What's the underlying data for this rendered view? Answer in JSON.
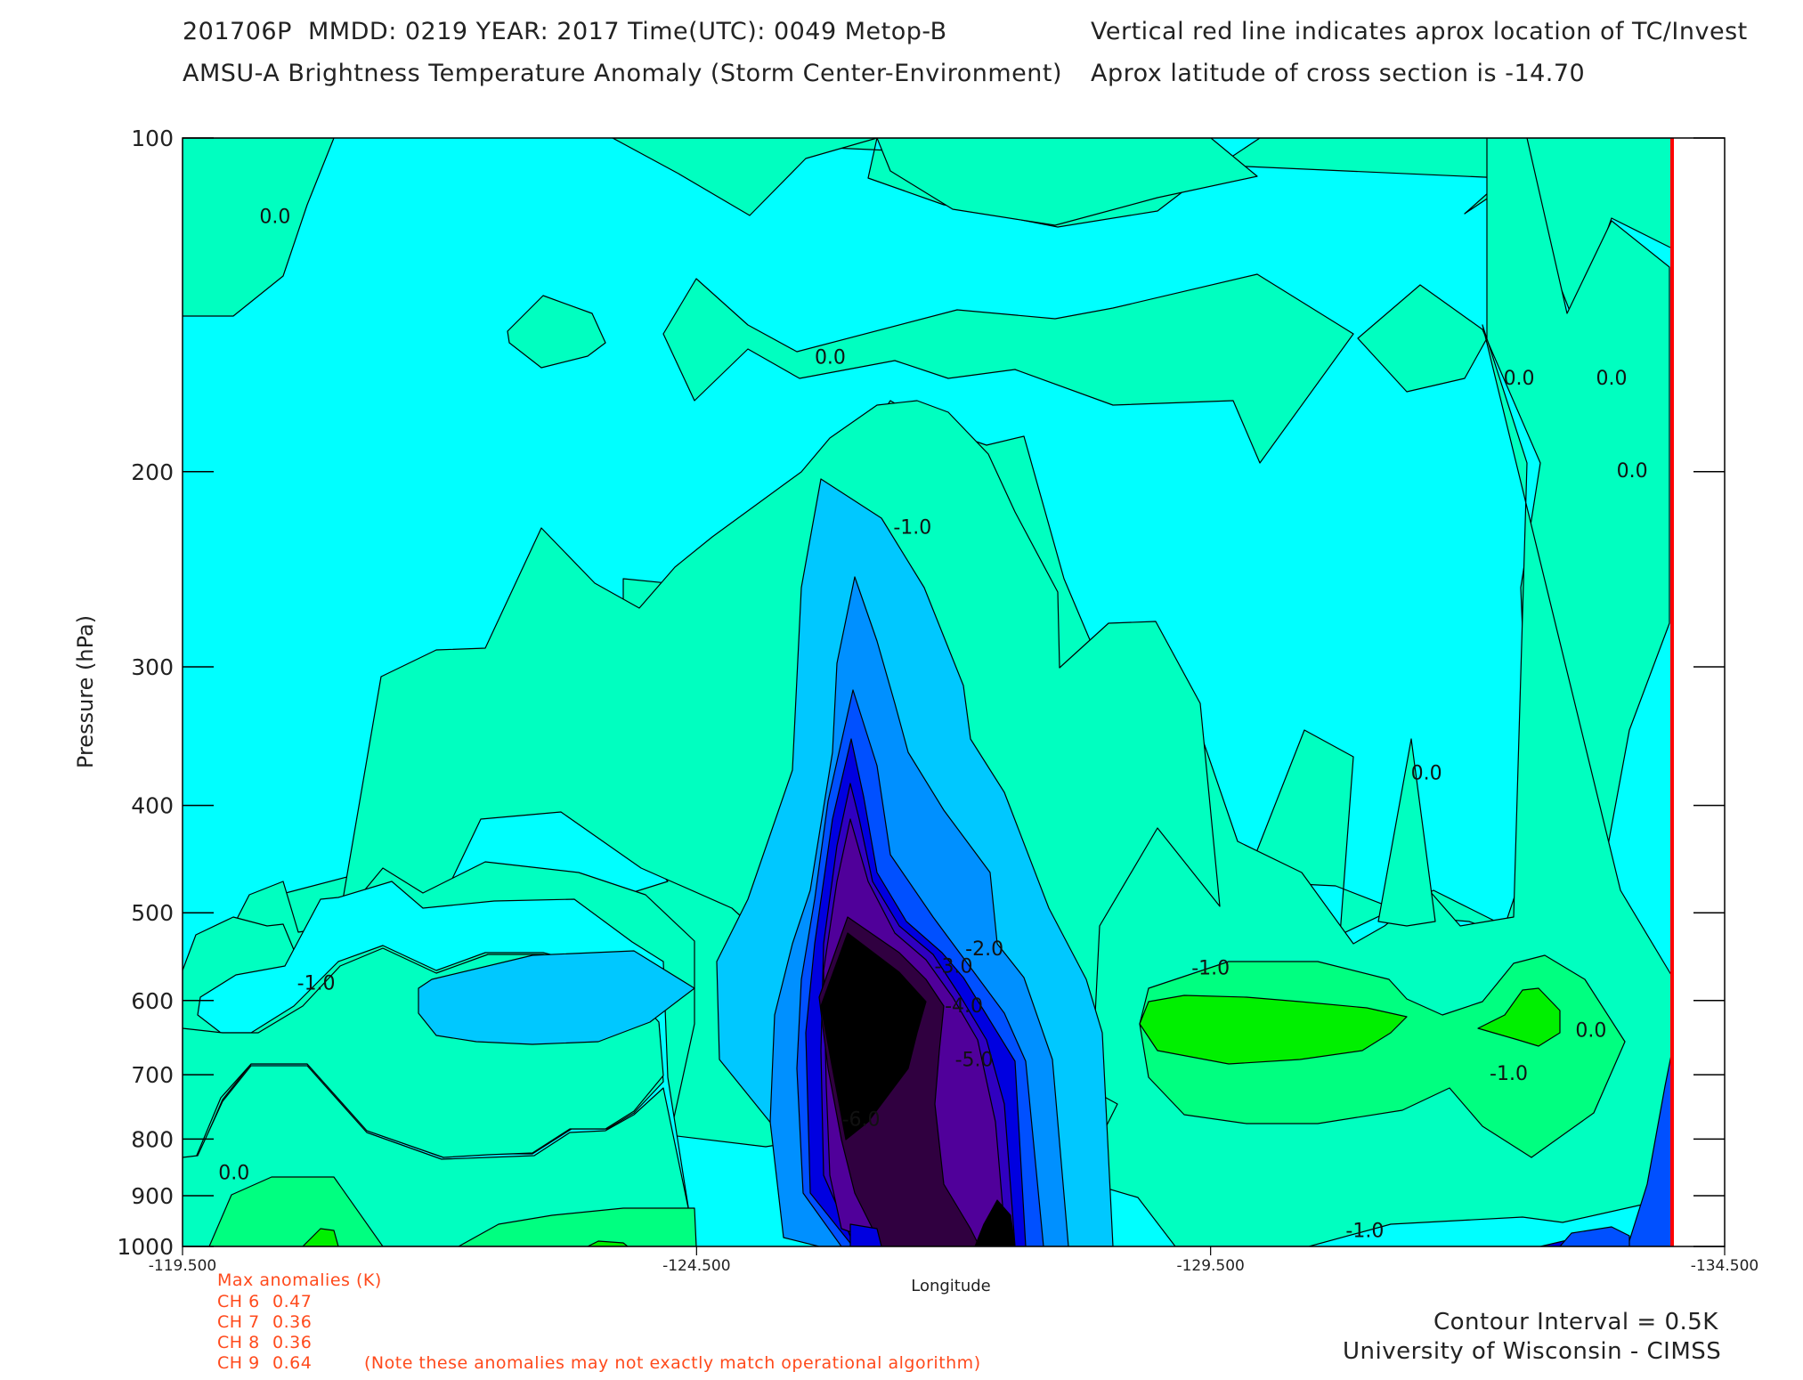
{
  "header": {
    "line1_left": "201706P  MMDD: 0219 YEAR: 2017 Time(UTC): 0049 Metop-B",
    "line2_left": "AMSU-A Brightness Temperature Anomaly (Storm Center-Environment)",
    "line1_right": "Vertical red line indicates aprox location of TC/Invest",
    "line2_right": "Aprox latitude of cross section is -14.70"
  },
  "anomalies": {
    "title": "Max anomalies (K)",
    "rows": [
      {
        "label": "CH 6",
        "value": "0.47"
      },
      {
        "label": "CH 7",
        "value": "0.36"
      },
      {
        "label": "CH 8",
        "value": "0.36"
      },
      {
        "label": "CH 9",
        "value": "0.64"
      }
    ],
    "note": "(Note these anomalies may not exactly match operational algorithm)"
  },
  "footer": {
    "interval": "Contour Interval = 0.5K",
    "institution": "University of Wisconsin - CIMSS"
  },
  "colors": {
    "background_field": "#00ffff",
    "red_line": "#ff0000",
    "anomaly_text": "#ff4a1c",
    "warm_1": "#00ffc0",
    "warm_2": "#00ff80",
    "warm_3": "#00f000",
    "cool_1": "#00c8ff",
    "cool_2": "#0090ff",
    "cool_3": "#0050ff",
    "cool_4": "#0000e0",
    "cool_5": "#3000c0",
    "cool_6": "#50009a",
    "cool_7": "#300040",
    "cool_8": "#000000"
  },
  "chart_data": {
    "type": "contour",
    "title": "AMSU-A Brightness Temperature Anomaly (Storm Center-Environment)",
    "xlabel": "Longitude",
    "ylabel": "Pressure (hPa)",
    "xlim": [
      -119.5,
      -134.5
    ],
    "ylim": [
      1000,
      100
    ],
    "y_scale": "log",
    "x_ticks": [
      "-119.500",
      "-124.500",
      "-129.500",
      "-134.500"
    ],
    "y_ticks": [
      "100",
      "200",
      "300",
      "400",
      "500",
      "600",
      "700",
      "800",
      "900",
      "1000"
    ],
    "contour_interval": 0.5,
    "storm_longitude": -133.65,
    "contour_labels": [
      {
        "text": "0.0",
        "lon": -120.4,
        "p": 118
      },
      {
        "text": "0.0",
        "lon": -125.8,
        "p": 158
      },
      {
        "text": "0.0",
        "lon": -132.5,
        "p": 165
      },
      {
        "text": "0.0",
        "lon": -133.4,
        "p": 165
      },
      {
        "text": "0.0",
        "lon": -133.6,
        "p": 200
      },
      {
        "text": "0.0",
        "lon": -131.6,
        "p": 375
      },
      {
        "text": "0.0",
        "lon": -133.2,
        "p": 640
      },
      {
        "text": "0.0",
        "lon": -120.0,
        "p": 860
      },
      {
        "text": "-1.0",
        "lon": -126.6,
        "p": 225
      },
      {
        "text": "-1.0",
        "lon": -120.8,
        "p": 580
      },
      {
        "text": "-1.0",
        "lon": -129.5,
        "p": 562
      },
      {
        "text": "-1.0",
        "lon": -132.4,
        "p": 700
      },
      {
        "text": "-1.0",
        "lon": -131.0,
        "p": 970
      },
      {
        "text": "-2.0",
        "lon": -127.3,
        "p": 540
      },
      {
        "text": "-3.0",
        "lon": -127.0,
        "p": 560
      },
      {
        "text": "-4.0",
        "lon": -127.1,
        "p": 608
      },
      {
        "text": "-5.0",
        "lon": -127.2,
        "p": 680
      },
      {
        "text": "-6.0",
        "lon": -126.1,
        "p": 770
      }
    ]
  }
}
